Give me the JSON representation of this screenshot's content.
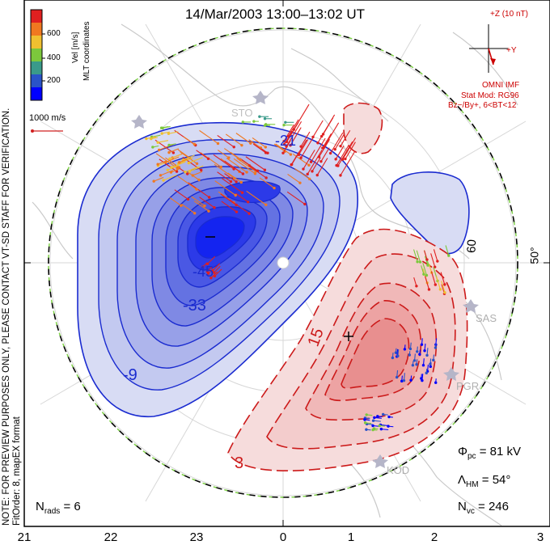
{
  "title": "14/Mar/2003 13:00–13:02 UT",
  "side_note": {
    "line1": "NOTE: FOR PREVIEW PURPOSES ONLY, PLEASE CONTACT VT-SD STAFF FOR VERIFICATION.",
    "line2": "FitOrder: 8, mapEX format"
  },
  "colorbar": {
    "label_top": "MLT coordinates",
    "label": "Vel [m/s]",
    "ticks": [
      "600",
      "400",
      "200"
    ],
    "colors": [
      "#0000ff",
      "#2a53c8",
      "#3a9a8a",
      "#7cc83c",
      "#f0c030",
      "#f07820",
      "#e02020"
    ]
  },
  "velocity_scale": "1000 m/s",
  "imf": {
    "axis_z": "+Z (10 nT)",
    "axis_y": "+Y",
    "source": "OMNI IMF",
    "model": "Stat Mod: RG96",
    "condition": "Bz−/By+, 6<BT<12"
  },
  "contour_labels": {
    "neg": [
      "-21",
      "-45",
      "-33",
      "-9"
    ],
    "pos": [
      "15",
      "3"
    ],
    "other": [
      "60"
    ]
  },
  "lat_label": "50°",
  "radars": [
    "SAS",
    "PGR",
    "KOD",
    "STO"
  ],
  "stats": {
    "phi_symbol": "Φ",
    "phi_sub": "pc",
    "phi_value": "= 81 kV",
    "lambda_symbol": "Λ",
    "lambda_sub": "HM",
    "lambda_value": "= 54°",
    "nvc_symbol": "N",
    "nvc_sub": "vc",
    "nvc_value": "= 246",
    "nrads_symbol": "N",
    "nrads_sub": "rads",
    "nrads_value": "= 6"
  },
  "mlt_hours": [
    "21",
    "22",
    "23",
    "0",
    "1",
    "2",
    "3"
  ]
}
